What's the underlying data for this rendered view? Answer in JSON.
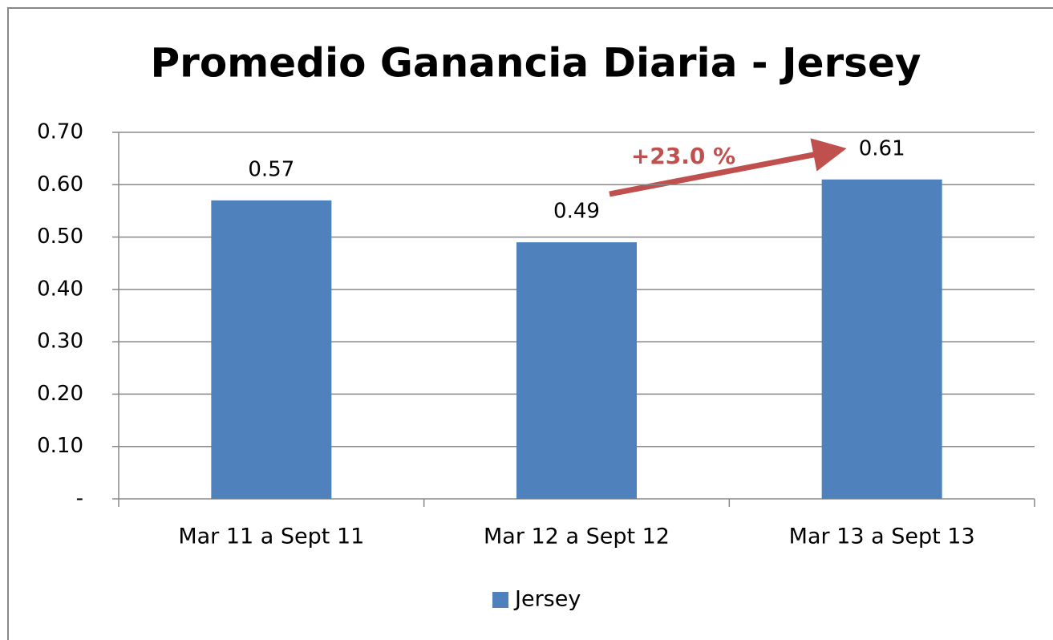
{
  "chart_data": {
    "type": "bar",
    "title": "Promedio Ganancia Diaria - Jersey",
    "categories": [
      "Mar 11 a Sept 11",
      "Mar 12 a Sept 12",
      "Mar 13 a Sept 13"
    ],
    "series": [
      {
        "name": "Jersey",
        "color": "#4f81bd",
        "values": [
          0.57,
          0.49,
          0.61
        ]
      }
    ],
    "ylim": [
      0,
      0.7
    ],
    "yticks": [
      {
        "value": 0,
        "label": "-"
      },
      {
        "value": 0.1,
        "label": "0.10"
      },
      {
        "value": 0.2,
        "label": "0.20"
      },
      {
        "value": 0.3,
        "label": "0.30"
      },
      {
        "value": 0.4,
        "label": "0.40"
      },
      {
        "value": 0.5,
        "label": "0.50"
      },
      {
        "value": 0.6,
        "label": "0.60"
      },
      {
        "value": 0.7,
        "label": "0.70"
      }
    ],
    "grid": true,
    "legend": "bottom",
    "annotation": "+23.0 %"
  }
}
